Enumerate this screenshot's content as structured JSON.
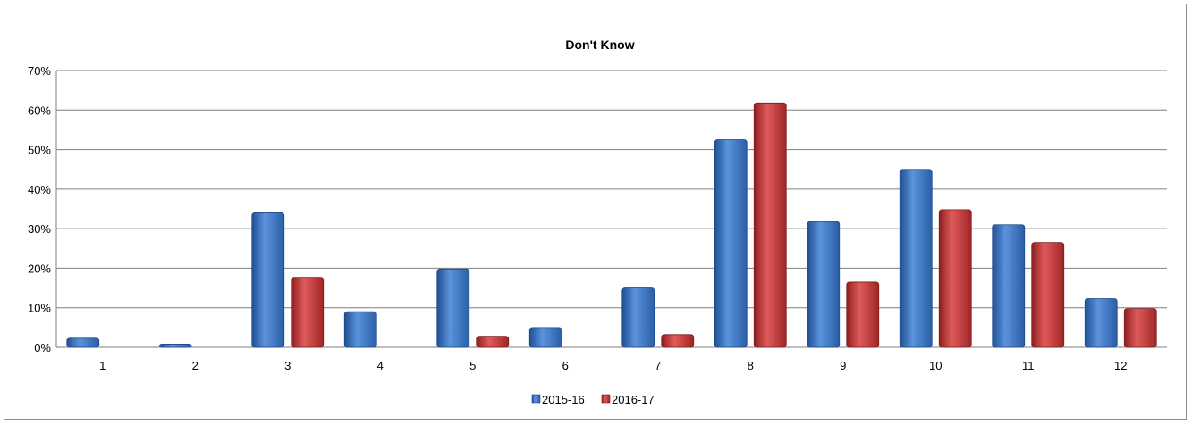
{
  "chart_data": {
    "type": "bar",
    "title": "Don't Know",
    "xlabel": "",
    "ylabel": "",
    "categories": [
      "1",
      "2",
      "3",
      "4",
      "5",
      "6",
      "7",
      "8",
      "9",
      "10",
      "11",
      "12"
    ],
    "ylim": [
      0,
      70
    ],
    "yticks": [
      "0%",
      "10%",
      "20%",
      "30%",
      "40%",
      "50%",
      "60%",
      "70%"
    ],
    "grid": true,
    "legend_position": "bottom",
    "series": [
      {
        "name": "2015-16",
        "color": "#3a74c6",
        "values": [
          2.3,
          0.8,
          34,
          9,
          19.8,
          5,
          15,
          52.5,
          31.8,
          45,
          31,
          12.3
        ]
      },
      {
        "name": "2016-17",
        "color": "#c93a3a",
        "values": [
          0,
          0,
          17.7,
          0,
          2.8,
          0,
          3.2,
          61.8,
          16.5,
          34.8,
          26.5,
          9.8
        ]
      }
    ]
  }
}
